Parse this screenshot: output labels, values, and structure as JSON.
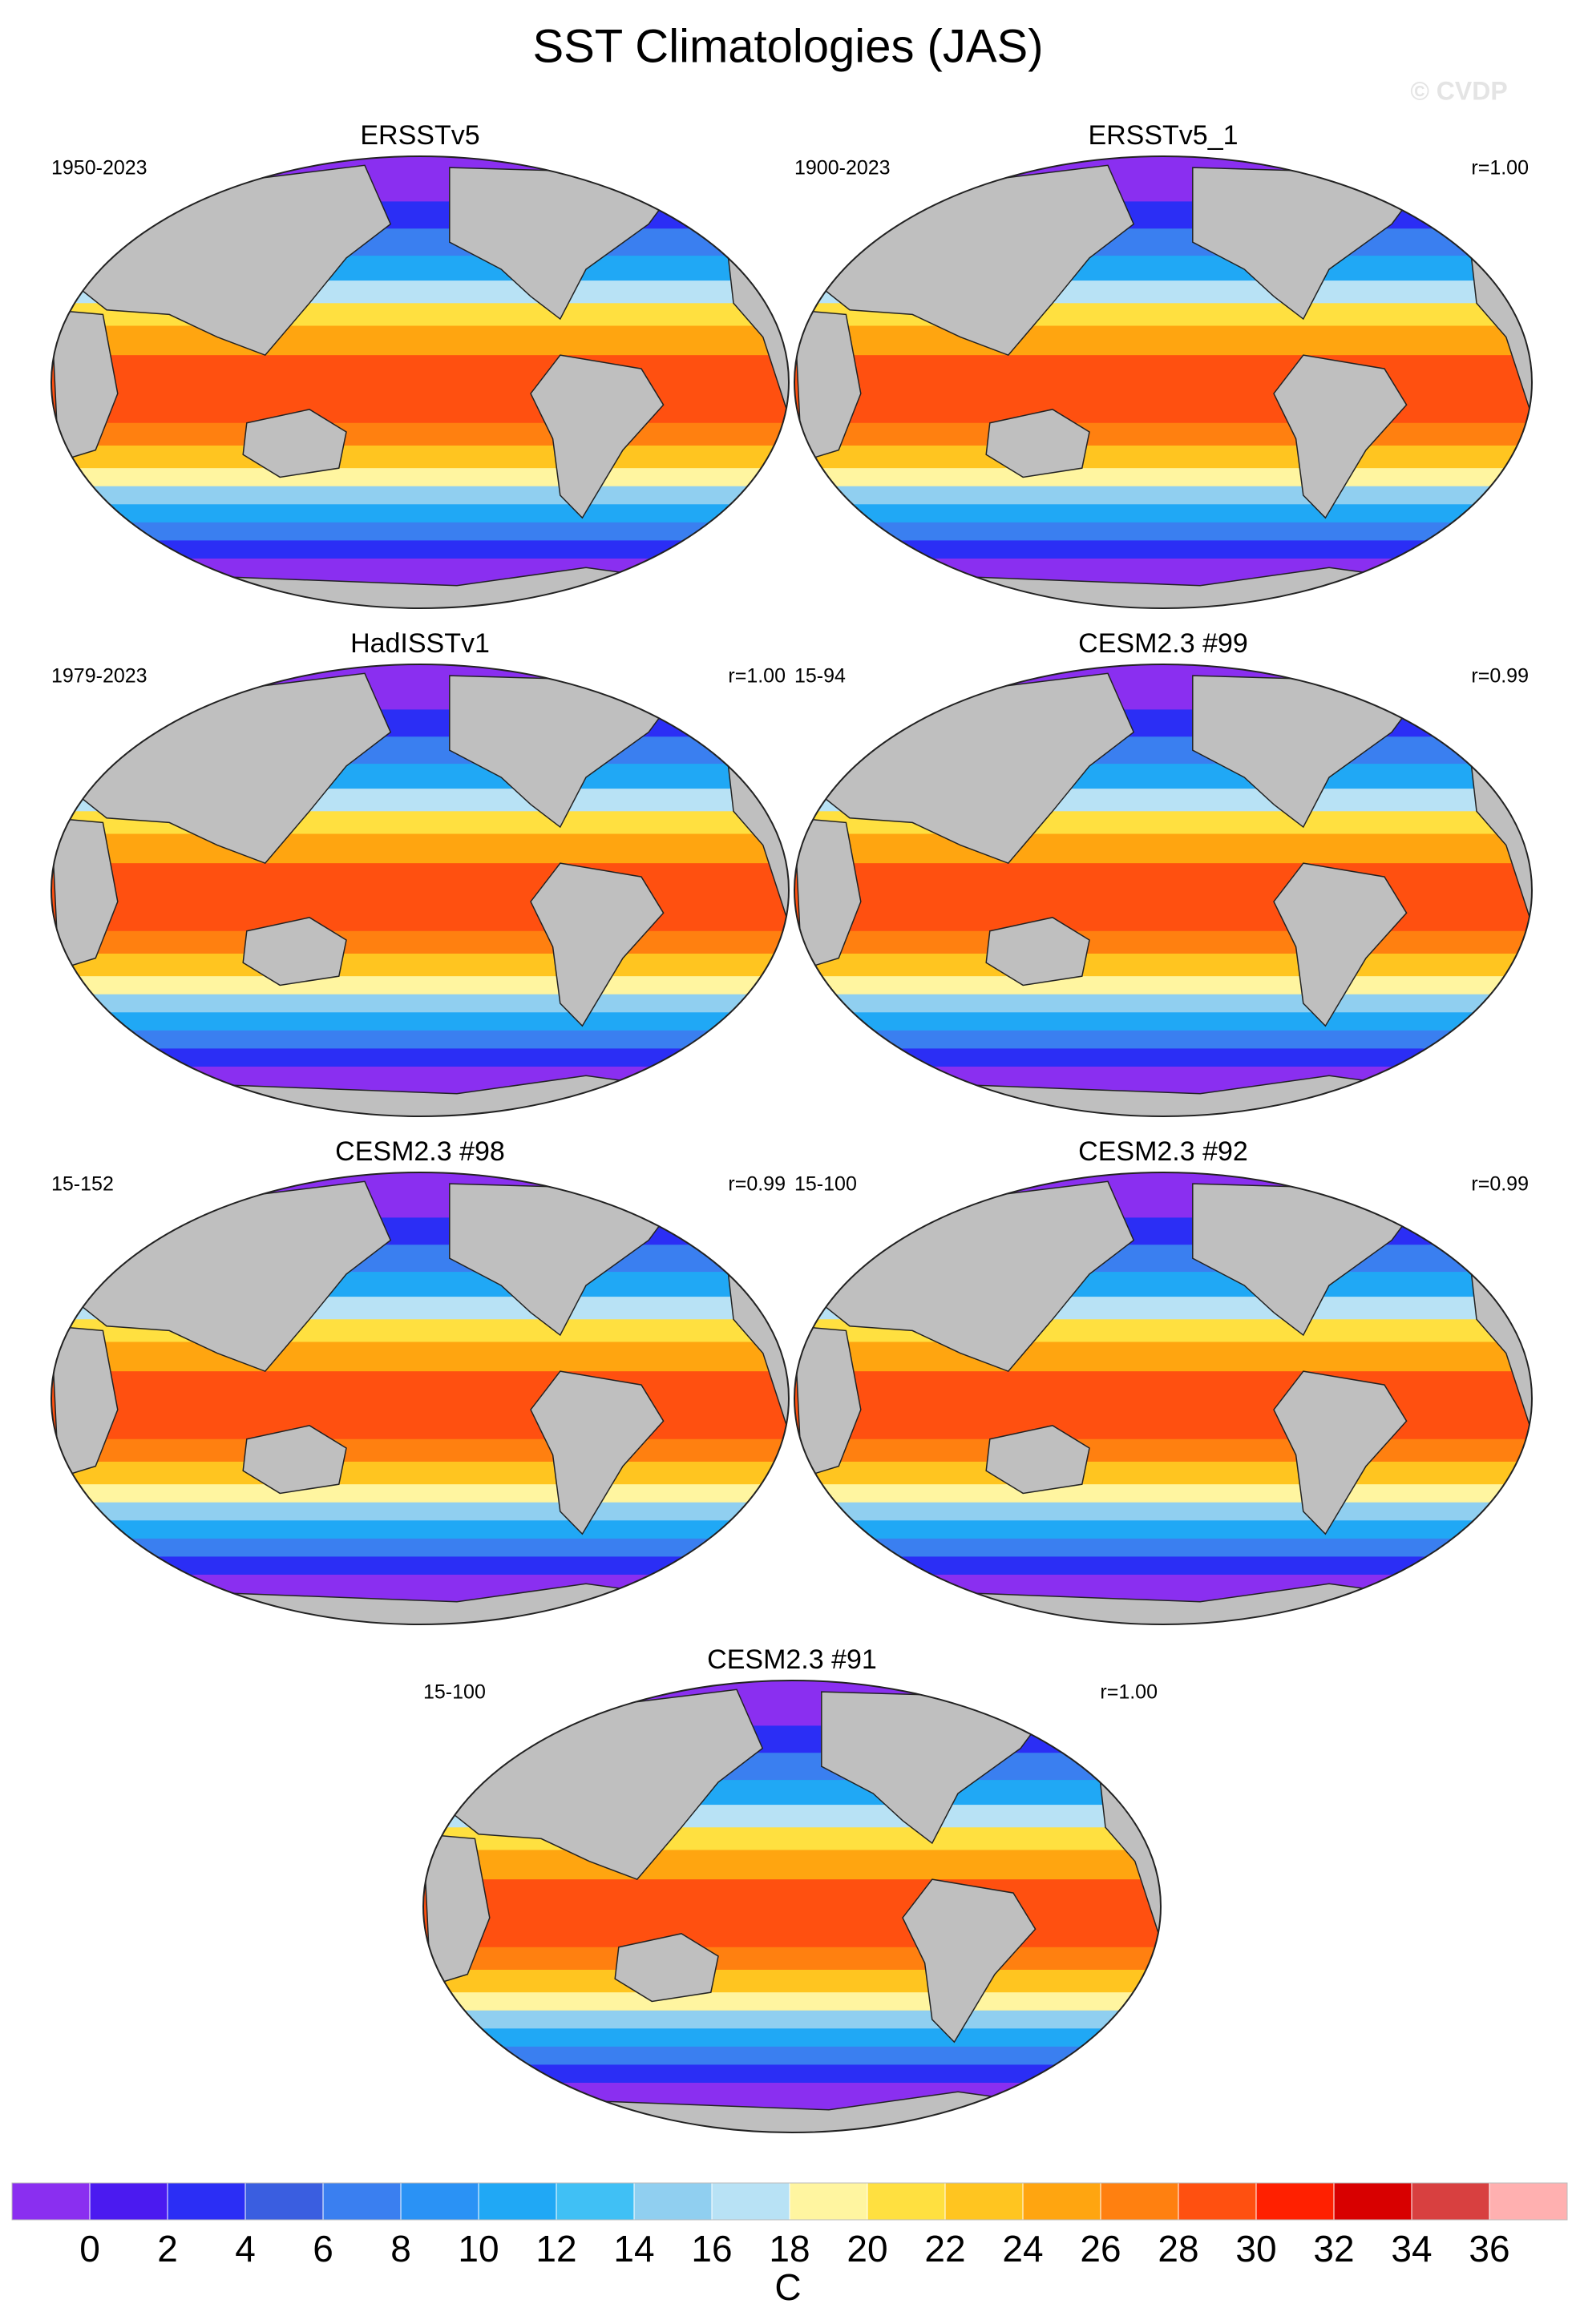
{
  "title": "SST Climatologies (JAS)",
  "watermark": "© CVDP",
  "panels": [
    {
      "title": "ERSSTv5",
      "period": "1950-2023"
    },
    {
      "title": "ERSSTv5_1",
      "period": "1900-2023",
      "r": "r=1.00"
    },
    {
      "title": "HadISSTv1",
      "period": "1979-2023",
      "r": "r=1.00"
    },
    {
      "title": "CESM2.3 #99",
      "period": "15-94",
      "r": "r=0.99"
    },
    {
      "title": "CESM2.3 #98",
      "period": "15-152",
      "r": "r=0.99"
    },
    {
      "title": "CESM2.3 #92",
      "period": "15-100",
      "r": "r=0.99"
    },
    {
      "title": "CESM2.3 #91",
      "period": "15-100",
      "r": "r=1.00"
    }
  ],
  "colorbar": {
    "levels": [
      0,
      2,
      4,
      6,
      8,
      10,
      12,
      14,
      16,
      18,
      20,
      22,
      24,
      26,
      28,
      30,
      32,
      34,
      36
    ],
    "colors": [
      "#8a2ff0",
      "#4b1af0",
      "#2b2ef5",
      "#3a5ee0",
      "#3a7ff0",
      "#2a92f5",
      "#20a8f5",
      "#40c0f5",
      "#90cff0",
      "#b8e2f5",
      "#fff5a0",
      "#ffe040",
      "#ffc520",
      "#ffa510",
      "#ff8010",
      "#ff5010",
      "#ff2000",
      "#d80000",
      "#d84040",
      "#ffb0b0"
    ],
    "unit": "C"
  }
}
